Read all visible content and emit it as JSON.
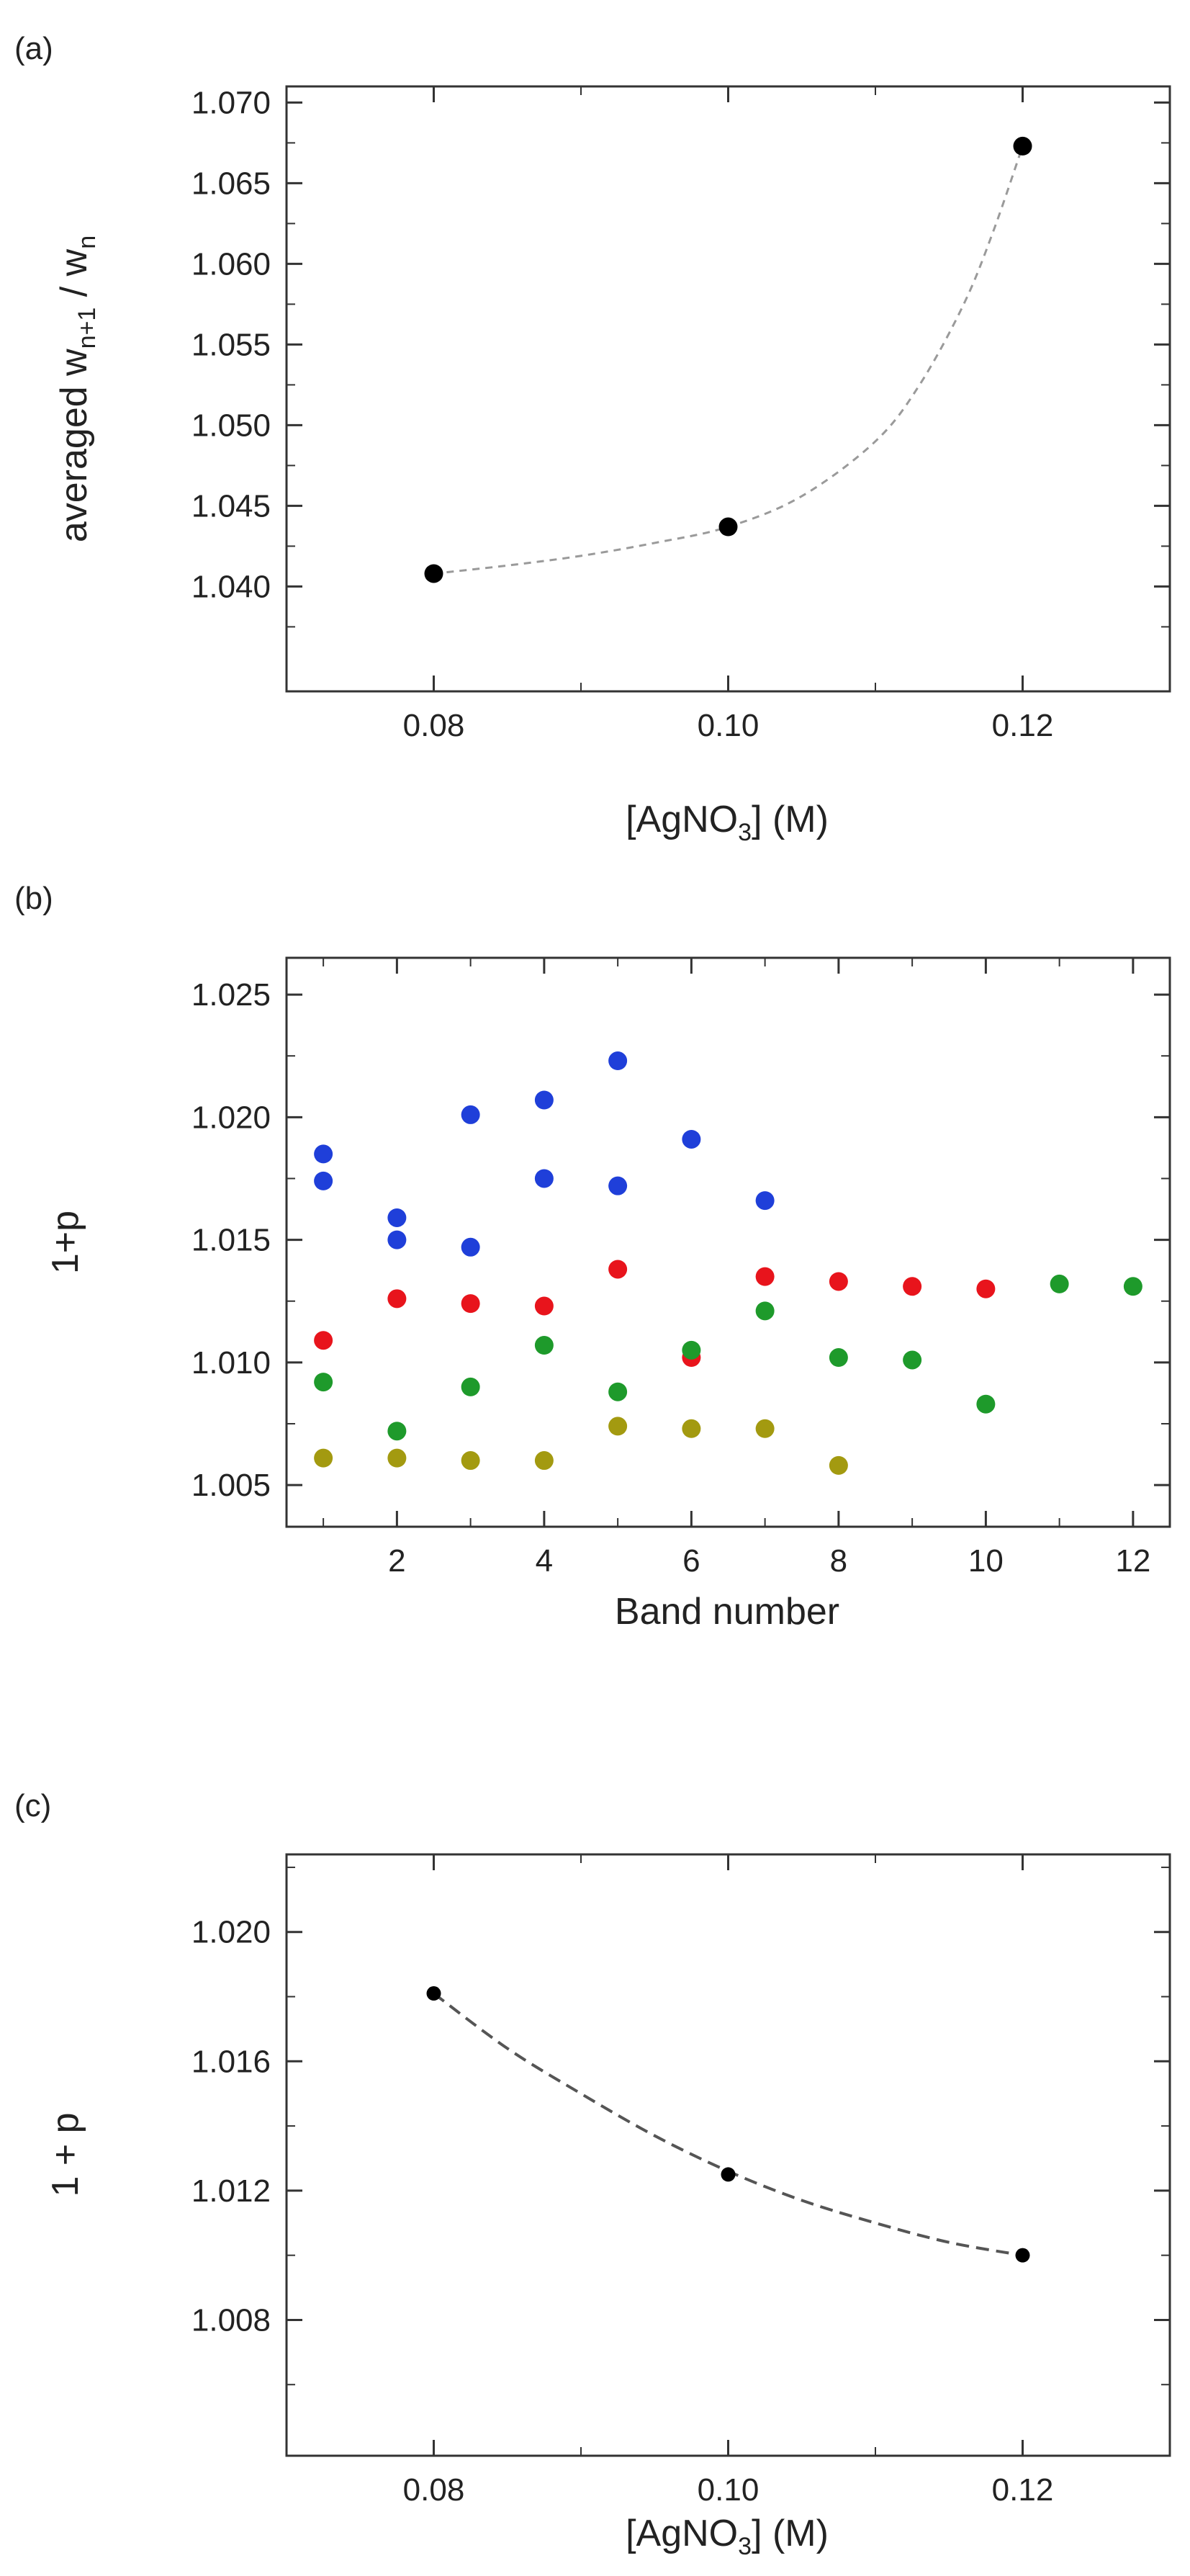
{
  "chart_data": [
    {
      "panel": "(a)",
      "type": "scatter",
      "xlabel": {
        "main": "[AgNO",
        "sub": "3",
        "tail": "] (M)"
      },
      "ylabel": {
        "main": "averaged w",
        "sub1": "n+1",
        "mid": " / w",
        "sub2": "n"
      },
      "xlim": [
        0.07,
        0.13
      ],
      "ylim": [
        1.0335,
        1.071
      ],
      "xticks": [
        "0.08",
        "0.10",
        "0.12"
      ],
      "yticks": [
        "1.040",
        "1.045",
        "1.050",
        "1.055",
        "1.060",
        "1.065",
        "1.070"
      ],
      "series": [
        {
          "name": "data",
          "color": "#000000",
          "x": [
            0.08,
            0.1,
            0.12
          ],
          "y": [
            1.0408,
            1.0437,
            1.0673
          ]
        }
      ],
      "fit": {
        "style": "dashed",
        "color": "#9a9a9a",
        "x": [
          0.08,
          0.085,
          0.09,
          0.095,
          0.1,
          0.105,
          0.11,
          0.113,
          0.116,
          0.118,
          0.12
        ],
        "y": [
          1.0408,
          1.0413,
          1.0419,
          1.0427,
          1.0437,
          1.0456,
          1.049,
          1.0525,
          1.0575,
          1.062,
          1.0673
        ]
      }
    },
    {
      "panel": "(b)",
      "type": "scatter",
      "xlabel": "Band number",
      "ylabel": "1+p",
      "xlim": [
        0.5,
        12.5
      ],
      "ylim": [
        1.0033,
        1.0265
      ],
      "xticks": [
        "2",
        "4",
        "6",
        "8",
        "10",
        "12"
      ],
      "yticks": [
        "1.005",
        "1.010",
        "1.015",
        "1.020",
        "1.025"
      ],
      "series": [
        {
          "name": "blue",
          "color": "#1f3fd9",
          "x": [
            1,
            1,
            2,
            2,
            3,
            3,
            4,
            4,
            5,
            5,
            6,
            7
          ],
          "y": [
            1.0185,
            1.0174,
            1.0159,
            1.015,
            1.0201,
            1.0147,
            1.0207,
            1.0175,
            1.0223,
            1.0172,
            1.0191,
            1.0166
          ]
        },
        {
          "name": "red",
          "color": "#e8141c",
          "x": [
            1,
            2,
            3,
            4,
            5,
            6,
            7,
            8,
            9,
            10
          ],
          "y": [
            1.0109,
            1.0126,
            1.0124,
            1.0123,
            1.0138,
            1.0102,
            1.0135,
            1.0133,
            1.0131,
            1.013
          ]
        },
        {
          "name": "green",
          "color": "#1e9a2b",
          "x": [
            1,
            2,
            3,
            4,
            5,
            6,
            7,
            8,
            9,
            10,
            11,
            12
          ],
          "y": [
            1.0092,
            1.0072,
            1.009,
            1.0107,
            1.0088,
            1.0105,
            1.0121,
            1.0102,
            1.0101,
            1.0083,
            1.0132,
            1.0131
          ]
        },
        {
          "name": "olive",
          "color": "#a39a10",
          "x": [
            1,
            2,
            3,
            4,
            5,
            6,
            7,
            8
          ],
          "y": [
            1.0061,
            1.0061,
            1.006,
            1.006,
            1.0074,
            1.0073,
            1.0073,
            1.0058
          ]
        }
      ]
    },
    {
      "panel": "(c)",
      "type": "scatter",
      "xlabel": {
        "main": "[AgNO",
        "sub": "3",
        "tail": "] (M)"
      },
      "ylabel": "1 + p",
      "xlim": [
        0.07,
        0.13
      ],
      "ylim": [
        1.0038,
        1.0224
      ],
      "xticks": [
        "0.08",
        "0.10",
        "0.12"
      ],
      "yticks": [
        "1.008",
        "1.012",
        "1.016",
        "1.020"
      ],
      "series": [
        {
          "name": "data",
          "color": "#000000",
          "x": [
            0.08,
            0.1,
            0.12
          ],
          "y": [
            1.0181,
            1.0125,
            1.01
          ]
        }
      ],
      "fit": {
        "style": "dashed",
        "color": "#555555",
        "x": [
          0.08,
          0.085,
          0.09,
          0.095,
          0.1,
          0.105,
          0.11,
          0.115,
          0.12
        ],
        "y": [
          1.0181,
          1.0164,
          1.015,
          1.0137,
          1.0126,
          1.0117,
          1.011,
          1.0104,
          1.01
        ]
      }
    }
  ]
}
